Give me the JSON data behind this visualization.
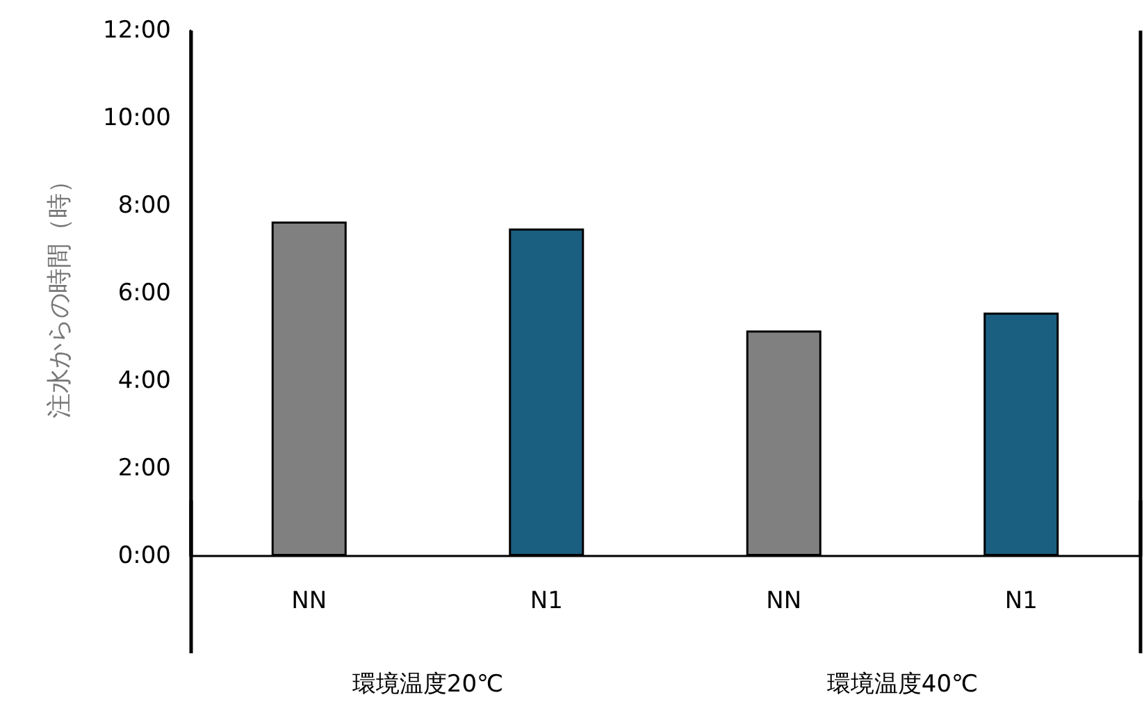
{
  "chart_data": {
    "type": "bar",
    "ylabel": "注水からの時間（時）",
    "categories": [
      "NN",
      "N1",
      "NN",
      "N1"
    ],
    "values": [
      7.64,
      7.48,
      5.15,
      5.56
    ],
    "colors": [
      "#808080",
      "#1a5e80",
      "#808080",
      "#1a5e80"
    ],
    "annotations": [
      "環境温度20℃",
      "環境温度40℃"
    ],
    "ylim": [
      0,
      12
    ],
    "yticks": [
      {
        "value": 0,
        "label": "0:00"
      },
      {
        "value": 2,
        "label": "2:00"
      },
      {
        "value": 4,
        "label": "4:00"
      },
      {
        "value": 6,
        "label": "6:00"
      },
      {
        "value": 8,
        "label": "8:00"
      },
      {
        "value": 10,
        "label": "10:00"
      },
      {
        "value": 12,
        "label": "12:00"
      }
    ],
    "grid": false
  }
}
